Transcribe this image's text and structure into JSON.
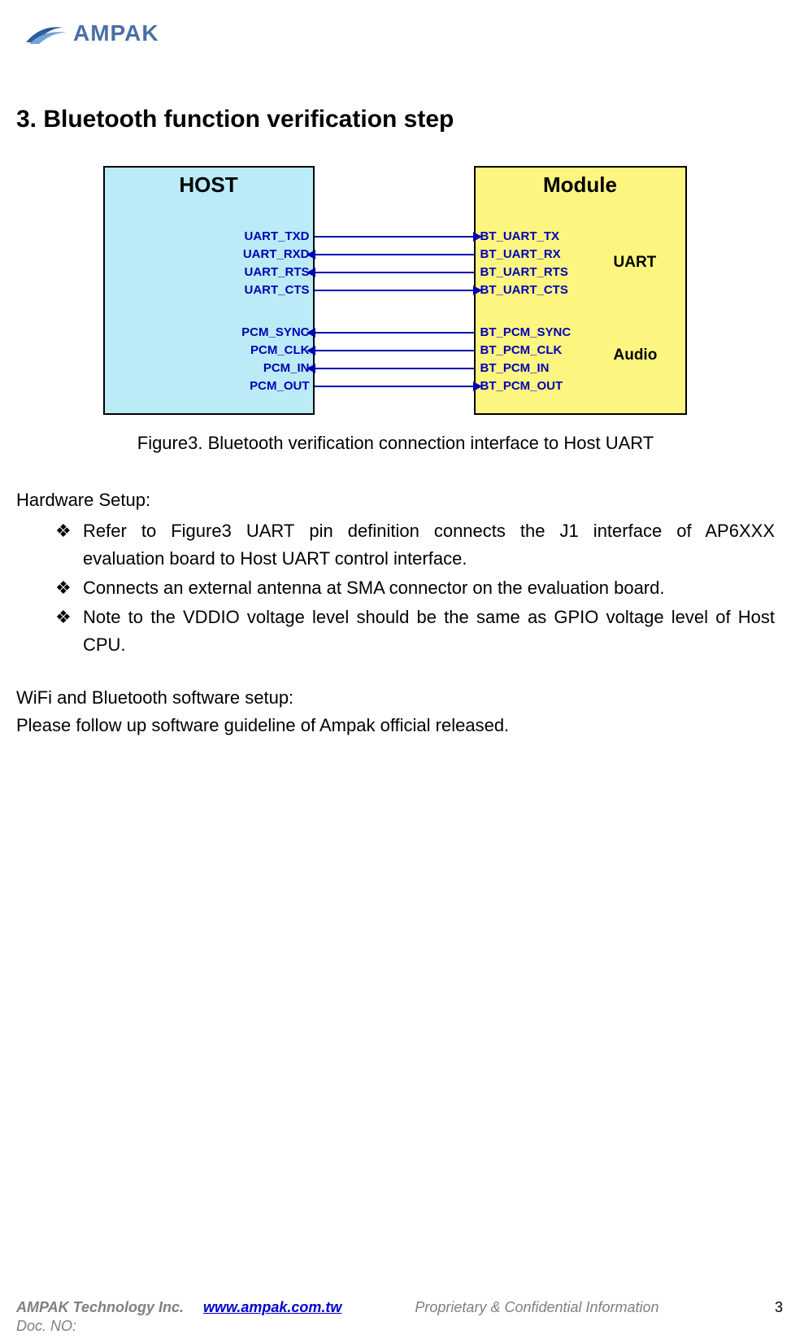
{
  "logo": {
    "text": "AMPAK",
    "text_color": "#4a6fa5",
    "swoosh_color": "#2e5a9e"
  },
  "section_title": "3. Bluetooth function verification step",
  "figure": {
    "caption": "Figure3. Bluetooth verification connection interface to Host UART",
    "host": {
      "title": "HOST",
      "bg_color": "#baebf6",
      "border_color": "#000000",
      "signals_uart": [
        "UART_TXD",
        "UART_RXD",
        "UART_RTS",
        "UART_CTS"
      ],
      "signals_audio": [
        "PCM_SYNC",
        "PCM_CLK",
        "PCM_IN",
        "PCM_OUT"
      ]
    },
    "module": {
      "title": "Module",
      "bg_color": "#fcf580",
      "border_color": "#000000",
      "signals_uart": [
        "BT_UART_TX",
        "BT_UART_RX",
        "BT_UART_RTS",
        "BT_UART_CTS"
      ],
      "signals_audio": [
        "BT_PCM_SYNC",
        "BT_PCM_CLK",
        "BT_PCM_IN",
        "BT_PCM_OUT"
      ]
    },
    "group_labels": {
      "uart": "UART",
      "audio": "Audio"
    },
    "signal_color": "#0000b3",
    "connections": [
      {
        "row": 0,
        "dir": "right"
      },
      {
        "row": 1,
        "dir": "left"
      },
      {
        "row": 2,
        "dir": "left"
      },
      {
        "row": 3,
        "dir": "right"
      },
      {
        "row": 4,
        "dir": "left"
      },
      {
        "row": 5,
        "dir": "left"
      },
      {
        "row": 6,
        "dir": "left"
      },
      {
        "row": 7,
        "dir": "right"
      }
    ]
  },
  "hardware_setup": {
    "heading": "Hardware Setup:",
    "bullet_glyph": "❖",
    "items": [
      "Refer to Figure3 UART pin definition connects the J1 interface of AP6XXX evaluation board to Host UART control interface.",
      "Connects an external antenna at SMA connector on the evaluation board.",
      "Note to the VDDIO voltage level should be the same as GPIO voltage level of Host CPU."
    ]
  },
  "software_setup": {
    "line1": "WiFi and Bluetooth software setup:",
    "line2": "Please follow up software guideline of Ampak official released."
  },
  "footer": {
    "company": "AMPAK Technology Inc.",
    "url": "www.ampak.com.tw",
    "confidential": "Proprietary & Confidential Information",
    "page_number": "3",
    "doc_no_label": "Doc. NO:"
  }
}
